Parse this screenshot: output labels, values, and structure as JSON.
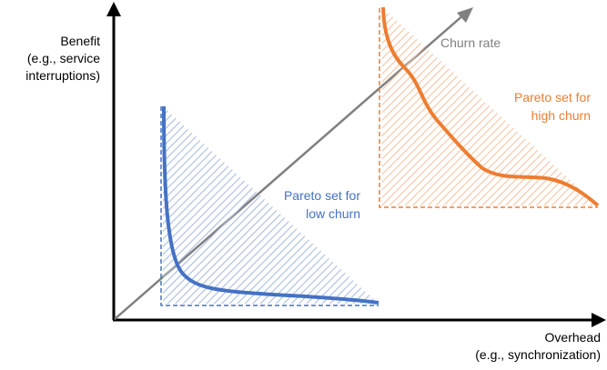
{
  "labels": {
    "y_line1": "Benefit",
    "y_line2": "(e.g., service",
    "y_line3": "interruptions)",
    "x_line1": "Overhead",
    "x_line2": "(e.g., synchronization)",
    "churn_axis": "Churn rate",
    "low_line1": "Pareto set for",
    "low_line2": "low churn",
    "high_line1": "Pareto set for",
    "high_line2": "high churn"
  },
  "colors": {
    "axis": "#000000",
    "churn_axis": "#808080",
    "churn_label": "#7f7f7f",
    "low": "#4472c4",
    "low_hatch": "#a9bde3",
    "high": "#ed7d31",
    "high_hatch": "#f6c3a3"
  }
}
